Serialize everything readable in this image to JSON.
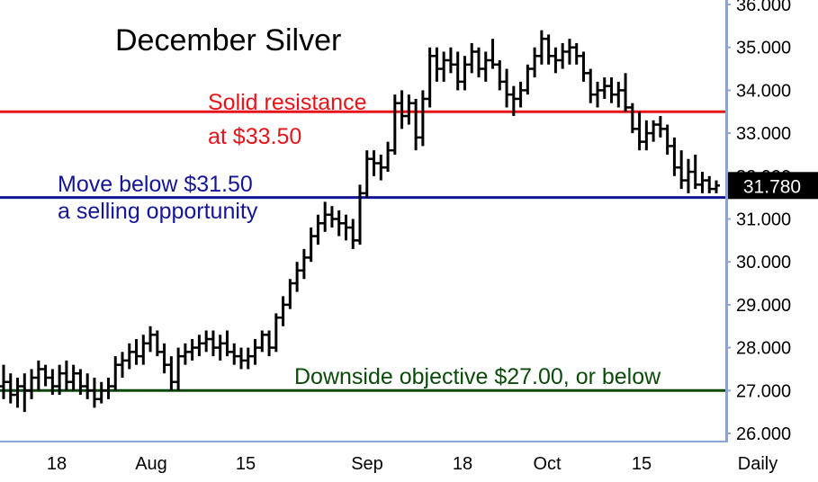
{
  "chart_data": {
    "type": "bar",
    "subtype": "ohlc-price-bars",
    "title": "December Silver",
    "period_label": "Daily",
    "ylim": [
      26.0,
      36.0
    ],
    "y_ticks": [
      "26.000",
      "27.000",
      "28.000",
      "29.000",
      "30.000",
      "31.000",
      "32.000",
      "33.000",
      "34.000",
      "35.000",
      "36.000"
    ],
    "x_labels": [
      "18",
      "Aug",
      "15",
      "Sep",
      "18",
      "Oct",
      "15"
    ],
    "last_price": "31.780",
    "last_price_value": 31.78,
    "lines": [
      {
        "name": "resistance",
        "value": 33.5,
        "color": "#e8141a",
        "text": [
          "Solid resistance",
          "at $33.50"
        ]
      },
      {
        "name": "selling-opportunity",
        "value": 31.5,
        "color": "#15159a",
        "text": [
          "Move below $31.50",
          "a selling opportunity"
        ]
      },
      {
        "name": "downside-objective",
        "value": 27.0,
        "color": "#0c4a0c",
        "text": [
          "Downside objective $27.00, or below"
        ]
      }
    ],
    "ohlc": [
      [
        27.1,
        27.6,
        26.8,
        27.2
      ],
      [
        27.2,
        27.4,
        26.7,
        26.9
      ],
      [
        26.9,
        27.3,
        26.6,
        27.1
      ],
      [
        27.1,
        27.4,
        26.5,
        27.0
      ],
      [
        27.0,
        27.5,
        26.8,
        27.3
      ],
      [
        27.3,
        27.7,
        27.0,
        27.5
      ],
      [
        27.5,
        27.6,
        27.1,
        27.3
      ],
      [
        27.3,
        27.5,
        26.9,
        27.1
      ],
      [
        27.1,
        27.6,
        26.9,
        27.4
      ],
      [
        27.4,
        27.7,
        27.0,
        27.2
      ],
      [
        27.2,
        27.6,
        27.0,
        27.4
      ],
      [
        27.4,
        27.5,
        26.9,
        27.1
      ],
      [
        27.1,
        27.4,
        26.8,
        27.0
      ],
      [
        27.0,
        27.3,
        26.6,
        26.8
      ],
      [
        26.8,
        27.2,
        26.7,
        27.0
      ],
      [
        27.0,
        27.3,
        26.8,
        27.1
      ],
      [
        27.1,
        27.8,
        27.0,
        27.6
      ],
      [
        27.6,
        27.9,
        27.3,
        27.7
      ],
      [
        27.7,
        28.1,
        27.5,
        27.9
      ],
      [
        27.9,
        28.2,
        27.6,
        27.8
      ],
      [
        27.8,
        28.3,
        27.6,
        28.1
      ],
      [
        28.1,
        28.5,
        27.9,
        28.3
      ],
      [
        28.3,
        28.4,
        27.8,
        27.9
      ],
      [
        27.9,
        28.1,
        27.4,
        27.6
      ],
      [
        27.6,
        27.8,
        27.0,
        27.2
      ],
      [
        27.2,
        28.0,
        27.0,
        27.8
      ],
      [
        27.8,
        28.1,
        27.6,
        27.9
      ],
      [
        27.9,
        28.2,
        27.7,
        28.0
      ],
      [
        28.0,
        28.3,
        27.8,
        28.1
      ],
      [
        28.1,
        28.4,
        27.9,
        28.2
      ],
      [
        28.2,
        28.4,
        27.8,
        28.0
      ],
      [
        28.0,
        28.3,
        27.7,
        28.1
      ],
      [
        28.1,
        28.4,
        27.8,
        27.9
      ],
      [
        27.9,
        28.1,
        27.6,
        27.8
      ],
      [
        27.8,
        28.0,
        27.5,
        27.7
      ],
      [
        27.7,
        28.0,
        27.5,
        27.8
      ],
      [
        27.8,
        28.2,
        27.6,
        28.0
      ],
      [
        28.0,
        28.4,
        27.9,
        28.3
      ],
      [
        28.3,
        28.4,
        27.8,
        28.0
      ],
      [
        28.0,
        28.8,
        27.9,
        28.7
      ],
      [
        28.7,
        29.2,
        28.5,
        29.0
      ],
      [
        29.0,
        29.6,
        28.9,
        29.5
      ],
      [
        29.5,
        30.0,
        29.3,
        29.8
      ],
      [
        29.8,
        30.3,
        29.6,
        30.1
      ],
      [
        30.1,
        30.8,
        30.0,
        30.6
      ],
      [
        30.6,
        31.1,
        30.4,
        30.9
      ],
      [
        30.9,
        31.4,
        30.7,
        31.1
      ],
      [
        31.1,
        31.3,
        30.8,
        31.0
      ],
      [
        31.0,
        31.2,
        30.6,
        30.9
      ],
      [
        30.9,
        31.1,
        30.5,
        30.8
      ],
      [
        30.8,
        31.0,
        30.3,
        30.5
      ],
      [
        30.5,
        31.8,
        30.4,
        31.6
      ],
      [
        31.6,
        32.6,
        31.5,
        32.4
      ],
      [
        32.4,
        32.6,
        32.0,
        32.3
      ],
      [
        32.3,
        32.5,
        31.9,
        32.2
      ],
      [
        32.2,
        32.8,
        32.1,
        32.6
      ],
      [
        32.6,
        33.9,
        32.5,
        33.7
      ],
      [
        33.7,
        34.0,
        33.1,
        33.4
      ],
      [
        33.4,
        33.9,
        33.2,
        33.7
      ],
      [
        33.7,
        33.8,
        32.6,
        32.9
      ],
      [
        32.9,
        34.0,
        32.7,
        33.8
      ],
      [
        33.8,
        35.0,
        33.6,
        34.8
      ],
      [
        34.8,
        35.0,
        34.2,
        34.5
      ],
      [
        34.5,
        34.9,
        34.2,
        34.7
      ],
      [
        34.7,
        35.0,
        34.4,
        34.6
      ],
      [
        34.6,
        34.9,
        34.0,
        34.2
      ],
      [
        34.2,
        34.8,
        34.0,
        34.6
      ],
      [
        34.6,
        35.1,
        34.4,
        34.9
      ],
      [
        34.9,
        35.0,
        34.3,
        34.5
      ],
      [
        34.5,
        34.9,
        34.2,
        34.7
      ],
      [
        34.7,
        35.2,
        34.5,
        34.6
      ],
      [
        34.6,
        34.7,
        34.0,
        34.2
      ],
      [
        34.2,
        34.5,
        33.6,
        33.9
      ],
      [
        33.9,
        34.1,
        33.4,
        33.8
      ],
      [
        33.8,
        34.2,
        33.6,
        34.0
      ],
      [
        34.0,
        34.6,
        33.9,
        34.5
      ],
      [
        34.5,
        35.0,
        34.3,
        34.8
      ],
      [
        34.8,
        35.4,
        34.6,
        35.2
      ],
      [
        35.2,
        35.3,
        34.6,
        34.8
      ],
      [
        34.8,
        35.0,
        34.4,
        34.7
      ],
      [
        34.7,
        35.1,
        34.5,
        34.9
      ],
      [
        34.9,
        35.2,
        34.6,
        35.0
      ],
      [
        35.0,
        35.1,
        34.6,
        34.8
      ],
      [
        34.8,
        34.9,
        34.2,
        34.4
      ],
      [
        34.4,
        34.5,
        33.7,
        33.9
      ],
      [
        33.9,
        34.2,
        33.6,
        34.0
      ],
      [
        34.0,
        34.3,
        33.8,
        34.1
      ],
      [
        34.1,
        34.3,
        33.7,
        33.9
      ],
      [
        33.9,
        34.2,
        33.6,
        34.0
      ],
      [
        34.0,
        34.4,
        33.5,
        33.6
      ],
      [
        33.6,
        33.7,
        33.0,
        33.1
      ],
      [
        33.1,
        33.5,
        32.6,
        32.8
      ],
      [
        32.8,
        33.3,
        32.6,
        33.0
      ],
      [
        33.0,
        33.3,
        32.8,
        33.2
      ],
      [
        33.2,
        33.4,
        32.9,
        33.1
      ],
      [
        33.1,
        33.2,
        32.5,
        32.7
      ],
      [
        32.7,
        32.9,
        32.0,
        32.2
      ],
      [
        32.2,
        32.6,
        31.7,
        31.9
      ],
      [
        31.9,
        32.4,
        31.6,
        32.1
      ],
      [
        32.1,
        32.5,
        31.7,
        31.8
      ],
      [
        31.8,
        32.1,
        31.6,
        31.9
      ],
      [
        31.9,
        32.0,
        31.6,
        31.7
      ],
      [
        31.7,
        31.9,
        31.6,
        31.78
      ]
    ]
  }
}
